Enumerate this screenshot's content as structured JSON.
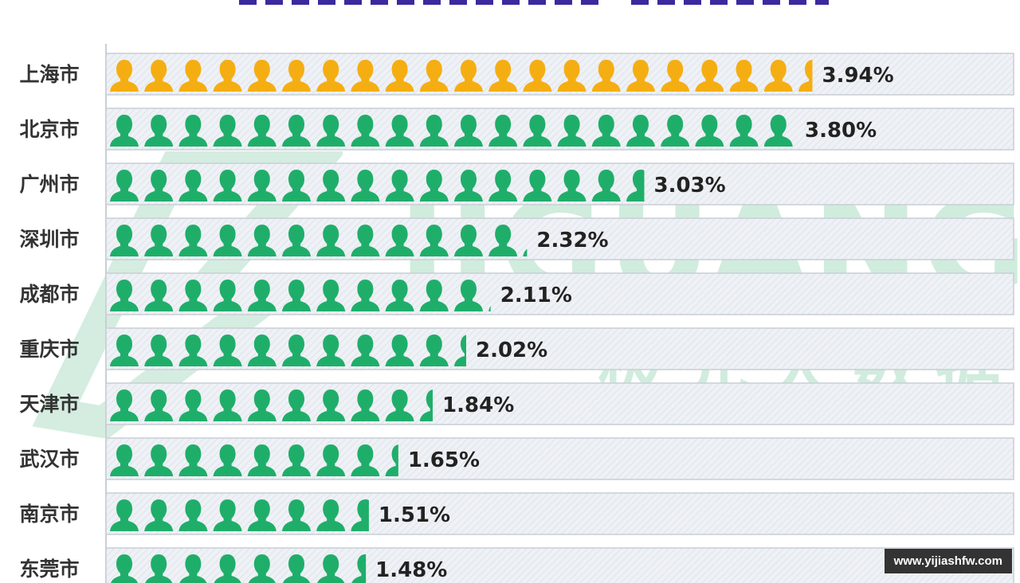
{
  "chart_data": {
    "type": "bar",
    "style": "pictograph",
    "title": "",
    "categories": [
      "上海市",
      "北京市",
      "广州市",
      "深圳市",
      "成都市",
      "重庆市",
      "天津市",
      "武汉市",
      "南京市",
      "东莞市"
    ],
    "values": [
      3.94,
      3.8,
      3.03,
      2.32,
      2.11,
      2.02,
      1.84,
      1.65,
      1.51,
      1.48
    ],
    "value_labels": [
      "3.94%",
      "3.80%",
      "3.03%",
      "2.32%",
      "2.11%",
      "2.02%",
      "1.84%",
      "1.65%",
      "1.51%",
      "1.48%"
    ],
    "unit": "%",
    "value_per_icon": 0.19,
    "icon": "person-icon",
    "colors": {
      "highlight": "#f5ae12",
      "default": "#1fae6a",
      "track": "#eef1f5",
      "track_border": "#c9ced6",
      "title": "#3b2a9e"
    },
    "highlight_index": 0,
    "legend": "none",
    "grid": false
  },
  "watermark": {
    "brand_en": "JIGUANG",
    "brand_cn": "极光大数据"
  },
  "site_badge": "www.yijiashfw.com"
}
